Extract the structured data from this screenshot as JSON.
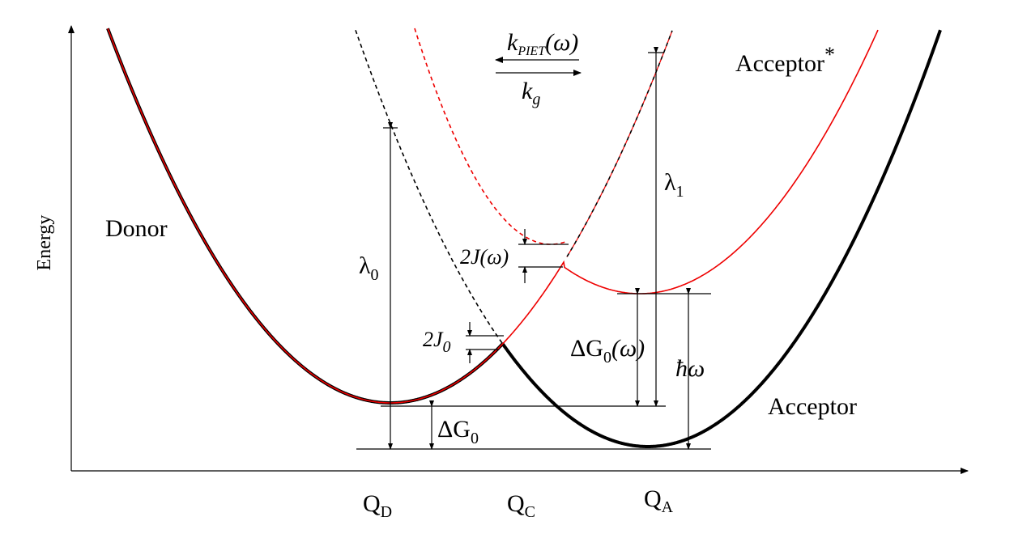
{
  "axis": {
    "y_label": "Energy"
  },
  "x_labels": [
    {
      "text": "Q",
      "sub": "D"
    },
    {
      "text": "Q",
      "sub": "C"
    },
    {
      "text": "Q",
      "sub": "A"
    }
  ],
  "curves": {
    "donor": "Donor",
    "acceptor_excited": {
      "text": "Acceptor",
      "sup": "*"
    },
    "acceptor": "Acceptor"
  },
  "annotations": {
    "k_piet": {
      "text": "k",
      "sub": "PIET",
      "after": "(ω)"
    },
    "k_g": {
      "text": "k",
      "sub": "g"
    },
    "lambda0": {
      "text": "λ",
      "sub": "0"
    },
    "lambda1": {
      "text": "λ",
      "sub": "1"
    },
    "two_j_omega": "2J(ω)",
    "two_j0": {
      "text": "2J",
      "sub": "0"
    },
    "delta_g0_omega": {
      "text": "ΔG",
      "sub": "0",
      "after": "(ω)"
    },
    "delta_g0": {
      "text": "ΔG",
      "sub": "0"
    },
    "hbar_omega": "ħω"
  }
}
